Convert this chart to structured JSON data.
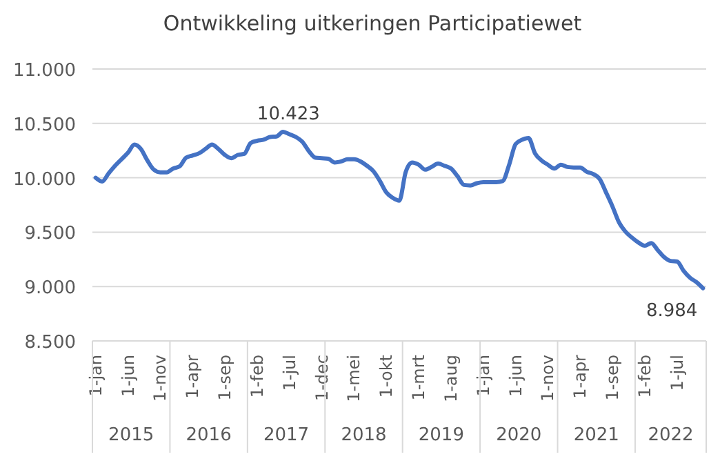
{
  "chart_data": {
    "type": "line",
    "title": "Ontwikkeling uitkeringen Participatiewet",
    "categories": [
      "1-jan",
      null,
      null,
      null,
      null,
      "1-jun",
      null,
      null,
      null,
      null,
      "1-nov",
      null,
      null,
      null,
      null,
      "1-apr",
      null,
      null,
      null,
      null,
      "1-sep",
      null,
      null,
      null,
      null,
      "1-feb",
      null,
      null,
      null,
      null,
      "1-jul",
      null,
      null,
      null,
      null,
      "1-dec",
      null,
      null,
      null,
      null,
      "1-mei",
      null,
      null,
      null,
      null,
      "1-okt",
      null,
      null,
      null,
      null,
      "1-mrt",
      null,
      null,
      null,
      null,
      "1-aug",
      null,
      null,
      null,
      null,
      "1-jan",
      null,
      null,
      null,
      null,
      "1-jun",
      null,
      null,
      null,
      null,
      "1-nov",
      null,
      null,
      null,
      null,
      "1-apr",
      null,
      null,
      null,
      null,
      "1-sep",
      null,
      null,
      null,
      null,
      "1-feb",
      null,
      null,
      null,
      null,
      "1-jul",
      null,
      null,
      null,
      null
    ],
    "series": [
      {
        "color": "#4472c4",
        "values": [
          10000,
          9965,
          10040,
          10110,
          10170,
          10230,
          10305,
          10265,
          10160,
          10075,
          10050,
          10050,
          10085,
          10105,
          10185,
          10205,
          10225,
          10265,
          10305,
          10265,
          10210,
          10180,
          10210,
          10220,
          10320,
          10340,
          10350,
          10375,
          10380,
          10423,
          10400,
          10375,
          10330,
          10245,
          10185,
          10180,
          10175,
          10140,
          10150,
          10170,
          10170,
          10150,
          10110,
          10060,
          9970,
          9865,
          9815,
          9790,
          10055,
          10140,
          10120,
          10075,
          10100,
          10130,
          10110,
          10085,
          10015,
          9935,
          9930,
          9950,
          9960,
          9960,
          9960,
          9970,
          10120,
          10310,
          10350,
          10365,
          10225,
          10160,
          10120,
          10085,
          10120,
          10100,
          10095,
          10095,
          10055,
          10035,
          9990,
          9865,
          9735,
          9590,
          9505,
          9450,
          9405,
          9375,
          9400,
          9335,
          9270,
          9235,
          9230,
          9145,
          9080,
          9040,
          8984
        ],
        "value_labels": [
          null,
          null,
          null,
          null,
          null,
          null,
          null,
          null,
          null,
          null,
          null,
          null,
          null,
          null,
          null,
          null,
          null,
          null,
          null,
          null,
          null,
          null,
          null,
          null,
          null,
          null,
          null,
          null,
          null,
          "10.423",
          null,
          null,
          null,
          null,
          null,
          null,
          null,
          null,
          null,
          null,
          null,
          null,
          null,
          null,
          null,
          null,
          null,
          null,
          null,
          null,
          null,
          null,
          null,
          null,
          null,
          null,
          null,
          null,
          null,
          null,
          null,
          null,
          null,
          null,
          null,
          null,
          null,
          null,
          null,
          null,
          null,
          null,
          null,
          null,
          null,
          null,
          null,
          null,
          null,
          null,
          null,
          null,
          null,
          null,
          null,
          null,
          null,
          null,
          null,
          null,
          null,
          null,
          null,
          null,
          "8.984"
        ]
      }
    ],
    "ylim": [
      8500,
      11000
    ],
    "yticks": [
      {
        "value": 8500,
        "label": "8.500"
      },
      {
        "value": 9000,
        "label": "9.000"
      },
      {
        "value": 9500,
        "label": "9.500"
      },
      {
        "value": 10000,
        "label": "10.000"
      },
      {
        "value": 10500,
        "label": "10.500"
      },
      {
        "value": 11000,
        "label": "11.000"
      }
    ],
    "grid": "y",
    "marker": "none",
    "line_style": "solid",
    "annotations": [
      "2015",
      "2016",
      "2017",
      "2018",
      "2019",
      "2020",
      "2021",
      "2022"
    ]
  }
}
